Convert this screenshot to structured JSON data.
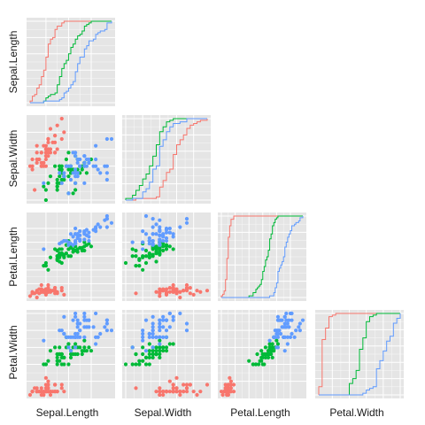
{
  "chart_data": {
    "type": "scatter-matrix",
    "title": "",
    "variables": [
      "Sepal.Length",
      "Sepal.Width",
      "Petal.Length",
      "Petal.Width"
    ],
    "ranges": {
      "Sepal.Length": [
        4.3,
        7.9
      ],
      "Sepal.Width": [
        2.0,
        4.4
      ],
      "Petal.Length": [
        1.0,
        6.9
      ],
      "Petal.Width": [
        0.1,
        2.5
      ]
    },
    "diagonal": "ecdf",
    "lower": "scatter",
    "upper": "blank",
    "panel_background": "#e5e5e5",
    "grid": true,
    "grid_color": "#ffffff",
    "species_colors": [
      "#f8766d",
      "#00ba38",
      "#619cff"
    ],
    "iris": [
      [
        5.1,
        3.5,
        1.4,
        0.2,
        0
      ],
      [
        4.9,
        3.0,
        1.4,
        0.2,
        0
      ],
      [
        4.7,
        3.2,
        1.3,
        0.2,
        0
      ],
      [
        4.6,
        3.1,
        1.5,
        0.2,
        0
      ],
      [
        5.0,
        3.6,
        1.4,
        0.2,
        0
      ],
      [
        5.4,
        3.9,
        1.7,
        0.4,
        0
      ],
      [
        4.6,
        3.4,
        1.4,
        0.3,
        0
      ],
      [
        5.0,
        3.4,
        1.5,
        0.2,
        0
      ],
      [
        4.4,
        2.9,
        1.4,
        0.2,
        0
      ],
      [
        4.9,
        3.1,
        1.5,
        0.1,
        0
      ],
      [
        5.4,
        3.7,
        1.5,
        0.2,
        0
      ],
      [
        4.8,
        3.4,
        1.6,
        0.2,
        0
      ],
      [
        4.8,
        3.0,
        1.4,
        0.1,
        0
      ],
      [
        4.3,
        3.0,
        1.1,
        0.1,
        0
      ],
      [
        5.8,
        4.0,
        1.2,
        0.2,
        0
      ],
      [
        5.7,
        4.4,
        1.5,
        0.4,
        0
      ],
      [
        5.4,
        3.9,
        1.3,
        0.4,
        0
      ],
      [
        5.1,
        3.5,
        1.4,
        0.3,
        0
      ],
      [
        5.7,
        3.8,
        1.7,
        0.3,
        0
      ],
      [
        5.1,
        3.8,
        1.5,
        0.3,
        0
      ],
      [
        5.4,
        3.4,
        1.7,
        0.2,
        0
      ],
      [
        5.1,
        3.7,
        1.5,
        0.4,
        0
      ],
      [
        4.6,
        3.6,
        1.0,
        0.2,
        0
      ],
      [
        5.1,
        3.3,
        1.7,
        0.5,
        0
      ],
      [
        4.8,
        3.4,
        1.9,
        0.2,
        0
      ],
      [
        5.0,
        3.0,
        1.6,
        0.2,
        0
      ],
      [
        5.0,
        3.4,
        1.6,
        0.4,
        0
      ],
      [
        5.2,
        3.5,
        1.5,
        0.2,
        0
      ],
      [
        5.2,
        3.4,
        1.4,
        0.2,
        0
      ],
      [
        4.7,
        3.2,
        1.6,
        0.2,
        0
      ],
      [
        4.8,
        3.1,
        1.6,
        0.2,
        0
      ],
      [
        5.4,
        3.4,
        1.5,
        0.4,
        0
      ],
      [
        5.2,
        4.1,
        1.5,
        0.1,
        0
      ],
      [
        5.5,
        4.2,
        1.4,
        0.2,
        0
      ],
      [
        4.9,
        3.1,
        1.5,
        0.2,
        0
      ],
      [
        5.0,
        3.2,
        1.2,
        0.2,
        0
      ],
      [
        5.5,
        3.5,
        1.3,
        0.2,
        0
      ],
      [
        4.9,
        3.6,
        1.4,
        0.1,
        0
      ],
      [
        4.4,
        3.0,
        1.3,
        0.2,
        0
      ],
      [
        5.1,
        3.4,
        1.5,
        0.2,
        0
      ],
      [
        5.0,
        3.5,
        1.3,
        0.3,
        0
      ],
      [
        4.5,
        2.3,
        1.3,
        0.3,
        0
      ],
      [
        4.4,
        3.2,
        1.3,
        0.2,
        0
      ],
      [
        5.0,
        3.5,
        1.6,
        0.6,
        0
      ],
      [
        5.1,
        3.8,
        1.9,
        0.4,
        0
      ],
      [
        4.8,
        3.0,
        1.4,
        0.3,
        0
      ],
      [
        5.1,
        3.8,
        1.6,
        0.2,
        0
      ],
      [
        4.6,
        3.2,
        1.4,
        0.2,
        0
      ],
      [
        5.3,
        3.7,
        1.5,
        0.2,
        0
      ],
      [
        5.0,
        3.3,
        1.4,
        0.2,
        0
      ],
      [
        7.0,
        3.2,
        4.7,
        1.4,
        1
      ],
      [
        6.4,
        3.2,
        4.5,
        1.5,
        1
      ],
      [
        6.9,
        3.1,
        4.9,
        1.5,
        1
      ],
      [
        5.5,
        2.3,
        4.0,
        1.3,
        1
      ],
      [
        6.5,
        2.8,
        4.6,
        1.5,
        1
      ],
      [
        5.7,
        2.8,
        4.5,
        1.3,
        1
      ],
      [
        6.3,
        3.3,
        4.7,
        1.6,
        1
      ],
      [
        4.9,
        2.4,
        3.3,
        1.0,
        1
      ],
      [
        6.6,
        2.9,
        4.6,
        1.3,
        1
      ],
      [
        5.2,
        2.7,
        3.9,
        1.4,
        1
      ],
      [
        5.0,
        2.0,
        3.5,
        1.0,
        1
      ],
      [
        5.9,
        3.0,
        4.2,
        1.5,
        1
      ],
      [
        6.0,
        2.2,
        4.0,
        1.0,
        1
      ],
      [
        6.1,
        2.9,
        4.7,
        1.4,
        1
      ],
      [
        5.6,
        2.9,
        3.6,
        1.3,
        1
      ],
      [
        6.7,
        3.1,
        4.4,
        1.4,
        1
      ],
      [
        5.6,
        3.0,
        4.5,
        1.5,
        1
      ],
      [
        5.8,
        2.7,
        4.1,
        1.0,
        1
      ],
      [
        6.2,
        2.2,
        4.5,
        1.5,
        1
      ],
      [
        5.6,
        2.5,
        3.9,
        1.1,
        1
      ],
      [
        5.9,
        3.2,
        4.8,
        1.8,
        1
      ],
      [
        6.1,
        2.8,
        4.0,
        1.3,
        1
      ],
      [
        6.3,
        2.5,
        4.9,
        1.5,
        1
      ],
      [
        6.1,
        2.8,
        4.7,
        1.2,
        1
      ],
      [
        6.4,
        2.9,
        4.3,
        1.3,
        1
      ],
      [
        6.6,
        3.0,
        4.4,
        1.4,
        1
      ],
      [
        6.8,
        2.8,
        4.8,
        1.4,
        1
      ],
      [
        6.7,
        3.0,
        5.0,
        1.7,
        1
      ],
      [
        6.0,
        2.9,
        4.5,
        1.5,
        1
      ],
      [
        5.7,
        2.6,
        3.5,
        1.0,
        1
      ],
      [
        5.5,
        2.4,
        3.8,
        1.1,
        1
      ],
      [
        5.5,
        2.4,
        3.7,
        1.0,
        1
      ],
      [
        5.8,
        2.7,
        3.9,
        1.2,
        1
      ],
      [
        6.0,
        2.7,
        5.1,
        1.6,
        1
      ],
      [
        5.4,
        3.0,
        4.5,
        1.5,
        1
      ],
      [
        6.0,
        3.4,
        4.5,
        1.6,
        1
      ],
      [
        6.7,
        3.1,
        4.7,
        1.5,
        1
      ],
      [
        6.3,
        2.3,
        4.4,
        1.3,
        1
      ],
      [
        5.6,
        3.0,
        4.1,
        1.3,
        1
      ],
      [
        5.5,
        2.5,
        4.0,
        1.3,
        1
      ],
      [
        5.5,
        2.6,
        4.4,
        1.2,
        1
      ],
      [
        6.1,
        3.0,
        4.6,
        1.4,
        1
      ],
      [
        5.8,
        2.6,
        4.0,
        1.2,
        1
      ],
      [
        5.0,
        2.3,
        3.3,
        1.0,
        1
      ],
      [
        5.6,
        2.7,
        4.2,
        1.3,
        1
      ],
      [
        5.7,
        3.0,
        4.2,
        1.2,
        1
      ],
      [
        5.7,
        2.9,
        4.2,
        1.3,
        1
      ],
      [
        6.2,
        2.9,
        4.3,
        1.3,
        1
      ],
      [
        5.1,
        2.5,
        3.0,
        1.1,
        1
      ],
      [
        5.7,
        2.8,
        4.1,
        1.3,
        1
      ],
      [
        6.3,
        3.3,
        6.0,
        2.5,
        2
      ],
      [
        5.8,
        2.7,
        5.1,
        1.9,
        2
      ],
      [
        7.1,
        3.0,
        5.9,
        2.1,
        2
      ],
      [
        6.3,
        2.9,
        5.6,
        1.8,
        2
      ],
      [
        6.5,
        3.0,
        5.8,
        2.2,
        2
      ],
      [
        7.6,
        3.0,
        6.6,
        2.1,
        2
      ],
      [
        4.9,
        2.5,
        4.5,
        1.7,
        2
      ],
      [
        7.3,
        2.9,
        6.3,
        1.8,
        2
      ],
      [
        6.7,
        2.5,
        5.8,
        1.8,
        2
      ],
      [
        7.2,
        3.6,
        6.1,
        2.5,
        2
      ],
      [
        6.5,
        3.2,
        5.1,
        2.0,
        2
      ],
      [
        6.4,
        2.7,
        5.3,
        1.9,
        2
      ],
      [
        6.8,
        3.0,
        5.5,
        2.1,
        2
      ],
      [
        5.7,
        2.5,
        5.0,
        2.0,
        2
      ],
      [
        5.8,
        2.8,
        5.1,
        2.4,
        2
      ],
      [
        6.4,
        3.2,
        5.3,
        2.3,
        2
      ],
      [
        6.5,
        3.0,
        5.5,
        1.8,
        2
      ],
      [
        7.7,
        3.8,
        6.7,
        2.2,
        2
      ],
      [
        7.7,
        2.6,
        6.9,
        2.3,
        2
      ],
      [
        6.0,
        2.2,
        5.0,
        1.5,
        2
      ],
      [
        6.9,
        3.2,
        5.7,
        2.3,
        2
      ],
      [
        5.6,
        2.8,
        4.9,
        2.0,
        2
      ],
      [
        7.7,
        2.8,
        6.7,
        2.0,
        2
      ],
      [
        6.3,
        2.7,
        4.9,
        1.8,
        2
      ],
      [
        6.7,
        3.3,
        5.7,
        2.1,
        2
      ],
      [
        7.2,
        3.2,
        6.0,
        1.8,
        2
      ],
      [
        6.2,
        2.8,
        4.8,
        1.8,
        2
      ],
      [
        6.1,
        3.0,
        4.9,
        1.8,
        2
      ],
      [
        6.4,
        2.8,
        5.6,
        2.1,
        2
      ],
      [
        7.2,
        3.0,
        5.8,
        1.6,
        2
      ],
      [
        7.4,
        2.8,
        6.1,
        1.9,
        2
      ],
      [
        7.9,
        3.8,
        6.4,
        2.0,
        2
      ],
      [
        6.4,
        2.8,
        5.6,
        2.2,
        2
      ],
      [
        6.3,
        2.8,
        5.1,
        1.5,
        2
      ],
      [
        6.1,
        2.6,
        5.6,
        1.4,
        2
      ],
      [
        7.7,
        3.0,
        6.1,
        2.3,
        2
      ],
      [
        6.3,
        3.4,
        5.6,
        2.4,
        2
      ],
      [
        6.4,
        3.1,
        5.5,
        1.8,
        2
      ],
      [
        6.0,
        3.0,
        4.8,
        1.8,
        2
      ],
      [
        6.9,
        3.1,
        5.4,
        2.1,
        2
      ],
      [
        6.7,
        3.1,
        5.6,
        2.4,
        2
      ],
      [
        6.9,
        3.1,
        5.1,
        2.3,
        2
      ],
      [
        5.8,
        2.7,
        5.1,
        1.9,
        2
      ],
      [
        6.8,
        3.2,
        5.9,
        2.3,
        2
      ],
      [
        6.7,
        3.3,
        5.7,
        2.5,
        2
      ],
      [
        6.7,
        3.0,
        5.2,
        2.3,
        2
      ],
      [
        6.3,
        2.5,
        5.0,
        1.9,
        2
      ],
      [
        6.5,
        3.0,
        5.2,
        2.0,
        2
      ],
      [
        6.2,
        3.4,
        5.4,
        2.3,
        2
      ],
      [
        5.9,
        3.0,
        5.1,
        1.8,
        2
      ]
    ]
  }
}
